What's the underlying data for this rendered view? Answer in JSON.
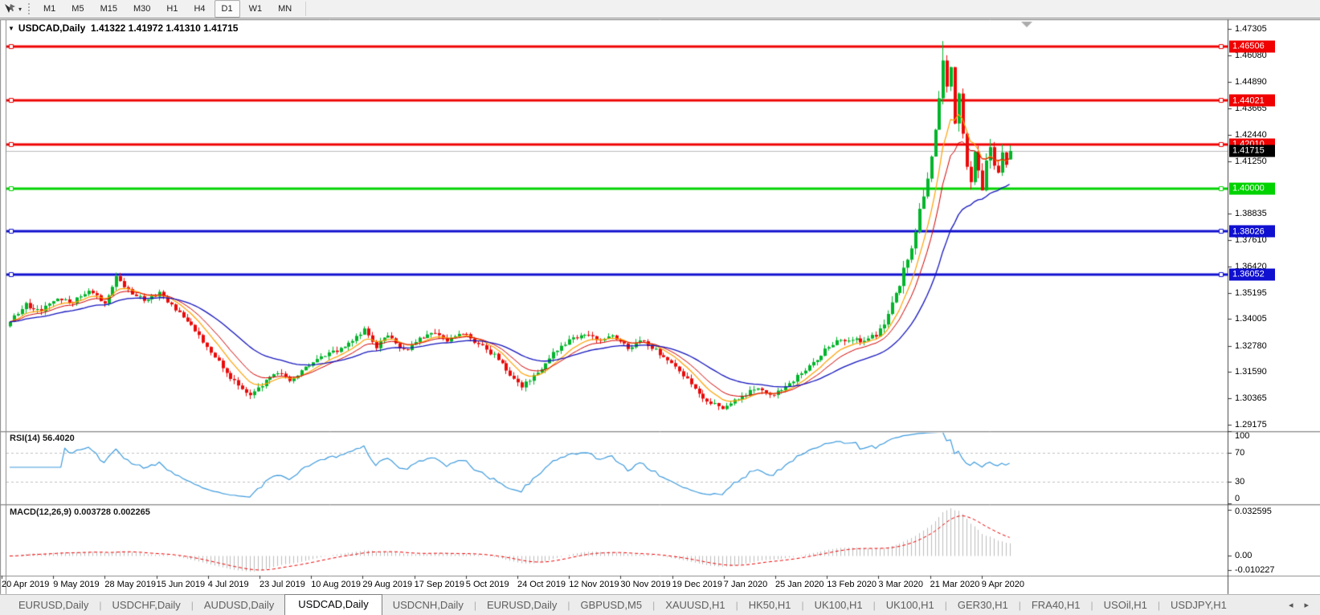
{
  "toolbar": {
    "timeframes": [
      "M1",
      "M5",
      "M15",
      "M30",
      "H1",
      "H4",
      "D1",
      "W1",
      "MN"
    ],
    "active_timeframe": "D1"
  },
  "window": {
    "title": "USDCAD,Daily  1.41322 1.41972 1.41310 1.41715"
  },
  "price_axis": {
    "ticks": [
      "1.47305",
      "1.46080",
      "1.44890",
      "1.43665",
      "1.42440",
      "1.41250",
      "1.38835",
      "1.37610",
      "1.36420",
      "1.35195",
      "1.34005",
      "1.32780",
      "1.31590",
      "1.30365",
      "1.29175"
    ]
  },
  "date_axis": {
    "labels": [
      "20 Apr 2019",
      "9 May 2019",
      "28 May 2019",
      "15 Jun 2019",
      "4 Jul 2019",
      "23 Jul 2019",
      "10 Aug 2019",
      "29 Aug 2019",
      "17 Sep 2019",
      "5 Oct 2019",
      "24 Oct 2019",
      "12 Nov 2019",
      "30 Nov 2019",
      "19 Dec 2019",
      "7 Jan 2020",
      "25 Jan 2020",
      "13 Feb 2020",
      "3 Mar 2020",
      "21 Mar 2020",
      "9 Apr 2020"
    ]
  },
  "lines": [
    {
      "label": "1.46506",
      "level": 1.46506,
      "color": "#F00000",
      "width": 3
    },
    {
      "label": "1.44021",
      "level": 1.44021,
      "color": "#F00000",
      "width": 3
    },
    {
      "label": "1.42010",
      "level": 1.4201,
      "color": "#F00000",
      "width": 3
    },
    {
      "label": "1.40000",
      "level": 1.4,
      "color": "#00D300",
      "width": 3
    },
    {
      "label": "1.38026",
      "level": 1.38026,
      "color": "#1010D0",
      "width": 3
    },
    {
      "label": "1.36052",
      "level": 1.36052,
      "color": "#1010D0",
      "width": 3
    }
  ],
  "current_price": {
    "label": "1.41715",
    "value": 1.41715,
    "badge_color": "#000000",
    "line_color": "#BBBBBB"
  },
  "indicators": {
    "rsi": {
      "label": "RSI(14) 56.4020",
      "period": 14,
      "last_value": 56.402,
      "axis": [
        "100",
        "70",
        "30",
        "0"
      ],
      "levels": [
        70,
        30
      ],
      "line_color": "#3E9BDD"
    },
    "macd": {
      "label": "MACD(12,26,9) 0.003728 0.002265",
      "fast": 12,
      "slow": 26,
      "signal": 9,
      "last_macd": 0.003728,
      "last_signal": 0.002265,
      "axis_top": "0.032595",
      "axis_zero": "0.00",
      "axis_bottom": "-0.010227",
      "histogram_color": "#BDBDBD",
      "signal_color": "#F00000"
    }
  },
  "tabs": {
    "items": [
      "EURUSD,Daily",
      "USDCHF,Daily",
      "AUDUSD,Daily",
      "USDCAD,Daily",
      "USDCNH,Daily",
      "EURUSD,Daily",
      "GBPUSD,M5",
      "XAUUSD,H1",
      "HK50,H1",
      "UK100,H1",
      "UK100,H1",
      "GER30,H1",
      "FRA40,H1",
      "USOil,H1",
      "USDJPY,H1"
    ],
    "active_index": 3,
    "scroll_left_icon": "◂",
    "scroll_right_icon": "▸"
  },
  "chart_data": {
    "type": "candlestick",
    "symbol": "USDCAD",
    "timeframe": "Daily",
    "current_bar": {
      "open": 1.41322,
      "high": 1.41972,
      "low": 1.4131,
      "close": 1.41715
    },
    "bars_visible": 255,
    "price_top": 1.4775,
    "price_bottom": 1.289,
    "peak_index": 237,
    "peak_high": 1.4675,
    "up_color": "#00B42A",
    "down_color": "#EA0A0A",
    "moving_averages": [
      {
        "name": "fast",
        "period": 8,
        "color": "#FFA000",
        "width": 1.2
      },
      {
        "name": "mid",
        "period": 13,
        "color": "#D40000",
        "width": 1
      },
      {
        "name": "slow",
        "period": 30,
        "color": "#1414BE",
        "width": 1.3
      }
    ],
    "close_path_anchors": [
      [
        0,
        1.339
      ],
      [
        4,
        1.3465
      ],
      [
        8,
        1.344
      ],
      [
        12,
        1.35
      ],
      [
        16,
        1.3475
      ],
      [
        20,
        1.353
      ],
      [
        24,
        1.348
      ],
      [
        27,
        1.359
      ],
      [
        30,
        1.3535
      ],
      [
        34,
        1.3485
      ],
      [
        38,
        1.3515
      ],
      [
        42,
        1.344
      ],
      [
        46,
        1.337
      ],
      [
        50,
        1.328
      ],
      [
        54,
        1.318
      ],
      [
        58,
        1.309
      ],
      [
        61,
        1.3055
      ],
      [
        64,
        1.31
      ],
      [
        68,
        1.316
      ],
      [
        71,
        1.3115
      ],
      [
        75,
        1.318
      ],
      [
        79,
        1.322
      ],
      [
        83,
        1.3255
      ],
      [
        87,
        1.331
      ],
      [
        90,
        1.335
      ],
      [
        93,
        1.3275
      ],
      [
        96,
        1.332
      ],
      [
        100,
        1.3255
      ],
      [
        104,
        1.3305
      ],
      [
        108,
        1.3345
      ],
      [
        111,
        1.3305
      ],
      [
        115,
        1.3335
      ],
      [
        119,
        1.3285
      ],
      [
        123,
        1.3235
      ],
      [
        127,
        1.315
      ],
      [
        130,
        1.309
      ],
      [
        133,
        1.3135
      ],
      [
        137,
        1.3225
      ],
      [
        141,
        1.329
      ],
      [
        145,
        1.333
      ],
      [
        149,
        1.3305
      ],
      [
        153,
        1.3325
      ],
      [
        157,
        1.327
      ],
      [
        161,
        1.33
      ],
      [
        165,
        1.3245
      ],
      [
        169,
        1.3185
      ],
      [
        172,
        1.3125
      ],
      [
        175,
        1.306
      ],
      [
        178,
        1.301
      ],
      [
        181,
        1.2998
      ],
      [
        185,
        1.304
      ],
      [
        189,
        1.308
      ],
      [
        193,
        1.305
      ],
      [
        197,
        1.309
      ],
      [
        201,
        1.315
      ],
      [
        205,
        1.322
      ],
      [
        209,
        1.329
      ],
      [
        213,
        1.331
      ],
      [
        217,
        1.3295
      ],
      [
        221,
        1.334
      ],
      [
        223,
        1.342
      ],
      [
        226,
        1.356
      ],
      [
        229,
        1.373
      ],
      [
        231,
        1.39
      ],
      [
        233,
        1.406
      ],
      [
        235,
        1.426
      ],
      [
        237,
        1.458
      ],
      [
        238,
        1.448
      ],
      [
        239,
        1.456
      ],
      [
        240,
        1.431
      ],
      [
        241,
        1.444
      ],
      [
        242,
        1.427
      ],
      [
        243,
        1.411
      ],
      [
        244,
        1.403
      ],
      [
        245,
        1.417
      ],
      [
        246,
        1.409
      ],
      [
        247,
        1.401
      ],
      [
        248,
        1.411
      ],
      [
        249,
        1.418
      ],
      [
        250,
        1.412
      ],
      [
        251,
        1.406
      ],
      [
        252,
        1.415
      ],
      [
        253,
        1.4105
      ],
      [
        254,
        1.41715
      ]
    ]
  }
}
